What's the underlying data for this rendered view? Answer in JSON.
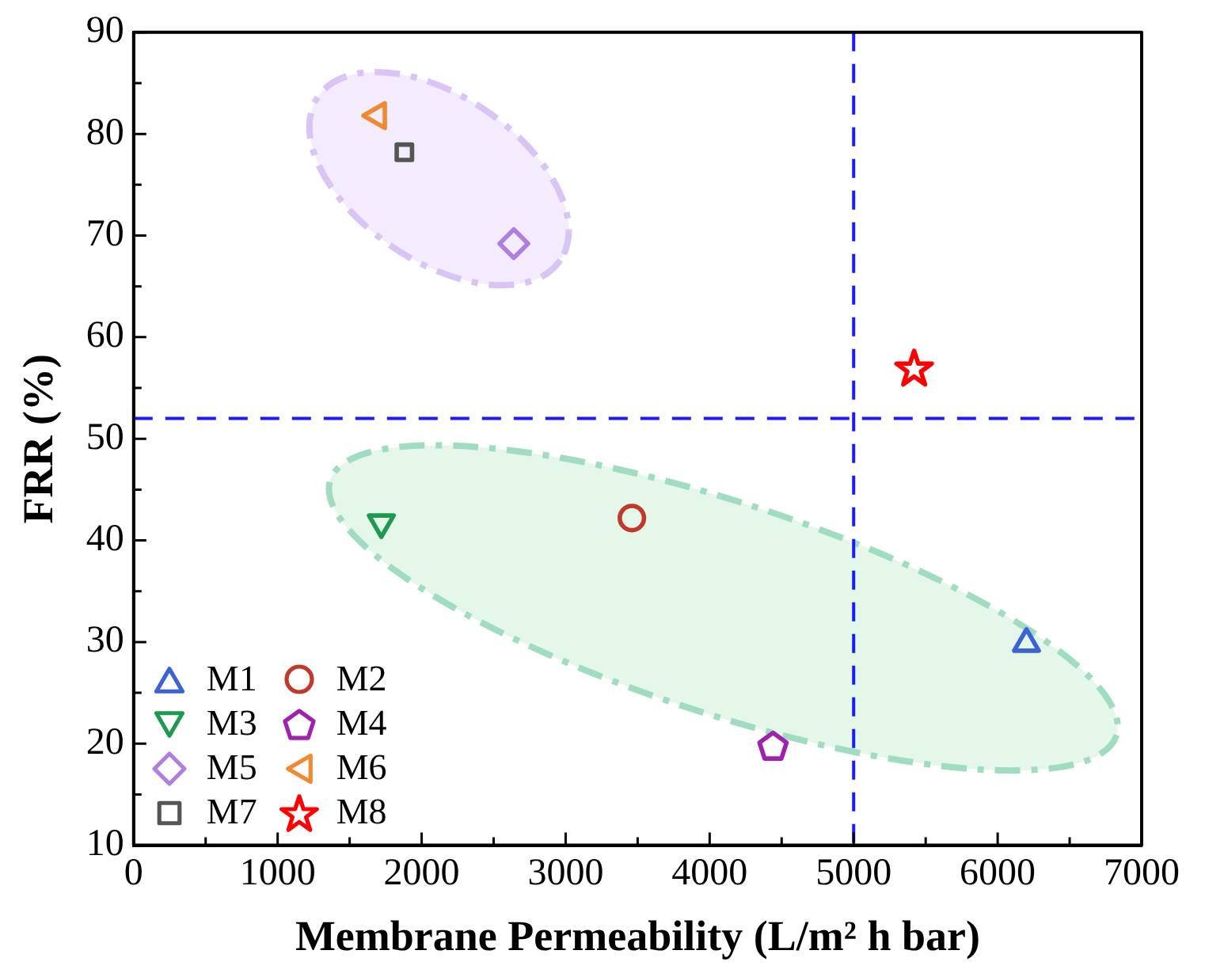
{
  "chart_data": {
    "type": "scatter",
    "xlabel": "Membrane Permeability (L/m² h bar)",
    "ylabel": "FRR (%)",
    "xlim": [
      0,
      7000
    ],
    "xticks": [
      0,
      1000,
      2000,
      3000,
      4000,
      5000,
      6000,
      7000
    ],
    "ylim": [
      10,
      90
    ],
    "yticks": [
      10,
      20,
      30,
      40,
      50,
      60,
      70,
      80,
      90
    ],
    "grid": false,
    "legend": "bottom left",
    "ref_lines": [
      {
        "axis": "x",
        "value": 5000,
        "color": "#1a1aff",
        "line_style": "dashed"
      },
      {
        "axis": "y",
        "value": 52,
        "color": "#1a1aff",
        "line_style": "dashed"
      }
    ],
    "series": [
      {
        "name": "M1",
        "color": "#3b62d6",
        "x": [
          6200
        ],
        "values": [
          30.2
        ]
      },
      {
        "name": "M2",
        "color": "#c0392b",
        "x": [
          3460
        ],
        "values": [
          42.2
        ]
      },
      {
        "name": "M3",
        "color": "#1e9a50",
        "x": [
          1720
        ],
        "values": [
          41.4
        ]
      },
      {
        "name": "M4",
        "color": "#a020b0",
        "x": [
          4440
        ],
        "values": [
          19.8
        ]
      },
      {
        "name": "M5",
        "color": "#b07ee0",
        "x": [
          2640
        ],
        "values": [
          69.2
        ]
      },
      {
        "name": "M6",
        "color": "#f08a30",
        "x": [
          1670
        ],
        "values": [
          81.8
        ]
      },
      {
        "name": "M7",
        "color": "#555555",
        "x": [
          1880
        ],
        "values": [
          78.2
        ]
      },
      {
        "name": "M8",
        "color": "#ff0000",
        "x": [
          5420
        ],
        "values": [
          57.0
        ]
      }
    ]
  }
}
